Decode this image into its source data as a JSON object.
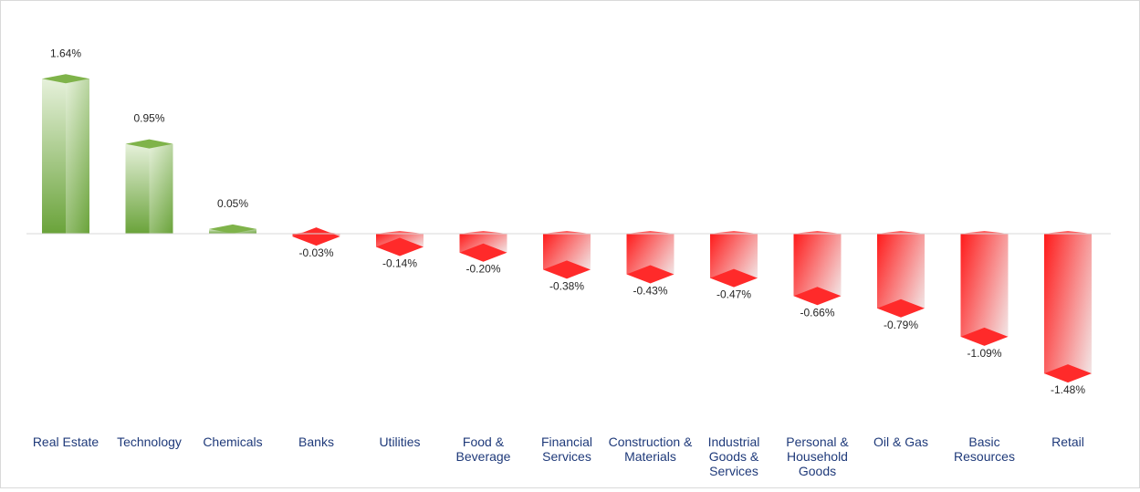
{
  "chart_data": {
    "type": "bar",
    "title": "",
    "xlabel": "",
    "ylabel": "",
    "categories": [
      [
        "Real Estate"
      ],
      [
        "Technology"
      ],
      [
        "Chemicals"
      ],
      [
        "Banks"
      ],
      [
        "Utilities"
      ],
      [
        "Food &",
        "Beverage"
      ],
      [
        "Financial",
        "Services"
      ],
      [
        "Construction &",
        "Materials"
      ],
      [
        "Industrial",
        "Goods &",
        "Services"
      ],
      [
        "Personal &",
        "Household",
        "Goods"
      ],
      [
        "Oil & Gas"
      ],
      [
        "Basic",
        "Resources"
      ],
      [
        "Retail"
      ]
    ],
    "values": [
      1.64,
      0.95,
      0.05,
      -0.03,
      -0.14,
      -0.2,
      -0.38,
      -0.43,
      -0.47,
      -0.66,
      -0.79,
      -1.09,
      -1.48
    ],
    "labels": [
      "1.64%",
      "0.95%",
      "0.05%",
      "-0.03%",
      "-0.14%",
      "-0.20%",
      "-0.38%",
      "-0.43%",
      "-0.47%",
      "-0.66%",
      "-0.79%",
      "-1.09%",
      "-1.48%"
    ],
    "ylim": [
      -1.6,
      1.8
    ],
    "legend": "none",
    "grid": false,
    "colors": {
      "positive_main": "#6aa33a",
      "positive_light": "#e6f1db",
      "positive_top": "#7fb34a",
      "negative_main": "#ff1a1a",
      "negative_light": "#f2e6e6",
      "negative_bottom": "#ff2a2a",
      "axis": "#d9d9d9",
      "category_text": "#1f3a7a",
      "label_text": "#262626"
    }
  }
}
